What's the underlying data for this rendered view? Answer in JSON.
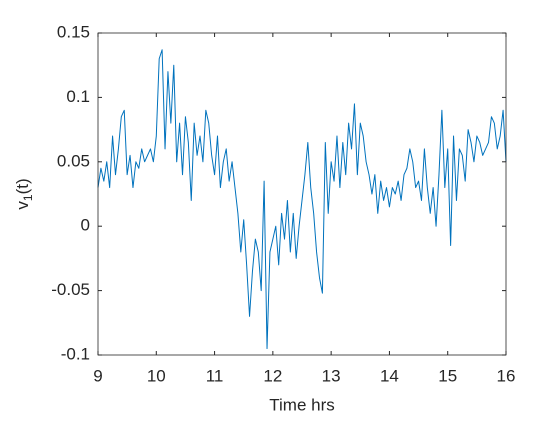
{
  "chart_data": {
    "type": "line",
    "xlabel": "Time hrs",
    "ylabel": [
      "v",
      "1",
      "(t)"
    ],
    "xlim": [
      9,
      16
    ],
    "xticks": [
      9,
      10,
      11,
      12,
      13,
      14,
      15,
      16
    ],
    "ylim": [
      -0.1,
      0.15
    ],
    "yticks": [
      -0.1,
      -0.05,
      0,
      0.05,
      0.1,
      0.15
    ],
    "grid": false,
    "x": [
      9.0,
      9.05,
      9.1,
      9.15,
      9.2,
      9.25,
      9.3,
      9.35,
      9.4,
      9.45,
      9.5,
      9.55,
      9.6,
      9.65,
      9.7,
      9.75,
      9.8,
      9.85,
      9.9,
      9.95,
      10.0,
      10.05,
      10.1,
      10.15,
      10.2,
      10.25,
      10.3,
      10.35,
      10.4,
      10.45,
      10.5,
      10.55,
      10.6,
      10.65,
      10.7,
      10.75,
      10.8,
      10.85,
      10.9,
      10.95,
      11.0,
      11.05,
      11.1,
      11.15,
      11.2,
      11.25,
      11.3,
      11.35,
      11.4,
      11.45,
      11.5,
      11.55,
      11.6,
      11.65,
      11.7,
      11.75,
      11.8,
      11.85,
      11.9,
      11.95,
      12.0,
      12.05,
      12.1,
      12.15,
      12.2,
      12.25,
      12.3,
      12.35,
      12.4,
      12.45,
      12.5,
      12.55,
      12.6,
      12.65,
      12.7,
      12.75,
      12.8,
      12.85,
      12.9,
      12.95,
      13.0,
      13.05,
      13.1,
      13.15,
      13.2,
      13.25,
      13.3,
      13.35,
      13.4,
      13.45,
      13.5,
      13.55,
      13.6,
      13.65,
      13.7,
      13.75,
      13.8,
      13.85,
      13.9,
      13.95,
      14.0,
      14.05,
      14.1,
      14.15,
      14.2,
      14.25,
      14.3,
      14.35,
      14.4,
      14.45,
      14.5,
      14.55,
      14.6,
      14.65,
      14.7,
      14.75,
      14.8,
      14.85,
      14.9,
      14.95,
      15.0,
      15.05,
      15.1,
      15.15,
      15.2,
      15.25,
      15.3,
      15.35,
      15.4,
      15.45,
      15.5,
      15.55,
      15.6,
      15.65,
      15.7,
      15.75,
      15.8,
      15.85,
      15.9,
      15.95,
      16.0
    ],
    "series": [
      {
        "color": "#0072bd",
        "values": [
          0.03,
          0.045,
          0.035,
          0.05,
          0.03,
          0.07,
          0.04,
          0.06,
          0.085,
          0.09,
          0.04,
          0.055,
          0.03,
          0.05,
          0.045,
          0.06,
          0.05,
          0.055,
          0.06,
          0.05,
          0.07,
          0.13,
          0.137,
          0.06,
          0.12,
          0.08,
          0.125,
          0.05,
          0.08,
          0.04,
          0.085,
          0.065,
          0.02,
          0.08,
          0.055,
          0.07,
          0.05,
          0.09,
          0.08,
          0.055,
          0.04,
          0.07,
          0.03,
          0.05,
          0.06,
          0.035,
          0.05,
          0.03,
          0.01,
          -0.02,
          0.005,
          -0.03,
          -0.07,
          -0.035,
          -0.01,
          -0.02,
          -0.05,
          0.035,
          -0.095,
          -0.02,
          -0.01,
          0.0,
          -0.03,
          0.01,
          -0.01,
          0.02,
          -0.02,
          0.01,
          -0.025,
          0.0,
          0.02,
          0.04,
          0.065,
          0.03,
          0.01,
          -0.02,
          -0.04,
          -0.052,
          0.065,
          0.01,
          0.05,
          0.035,
          0.07,
          0.03,
          0.065,
          0.04,
          0.08,
          0.06,
          0.095,
          0.04,
          0.08,
          0.07,
          0.05,
          0.04,
          0.025,
          0.04,
          0.01,
          0.035,
          0.02,
          0.03,
          0.015,
          0.03,
          0.025,
          0.035,
          0.02,
          0.04,
          0.045,
          0.06,
          0.05,
          0.03,
          0.035,
          0.02,
          0.06,
          0.03,
          0.01,
          0.03,
          0.0,
          0.04,
          0.09,
          0.03,
          0.06,
          -0.015,
          0.07,
          0.02,
          0.06,
          0.055,
          0.035,
          0.075,
          0.065,
          0.05,
          0.07,
          0.065,
          0.055,
          0.06,
          0.065,
          0.085,
          0.08,
          0.06,
          0.07,
          0.09,
          0.05
        ]
      }
    ]
  }
}
